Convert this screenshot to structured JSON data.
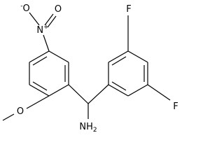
{
  "atoms": [
    {
      "label": "O",
      "charge": "-"
    },
    {
      "label": "N",
      "charge": "+"
    },
    {
      "label": "O"
    },
    {
      "label": "O"
    },
    {
      "label": "NH",
      "count": "2"
    },
    {
      "label": "F"
    },
    {
      "label": "F"
    }
  ]
}
